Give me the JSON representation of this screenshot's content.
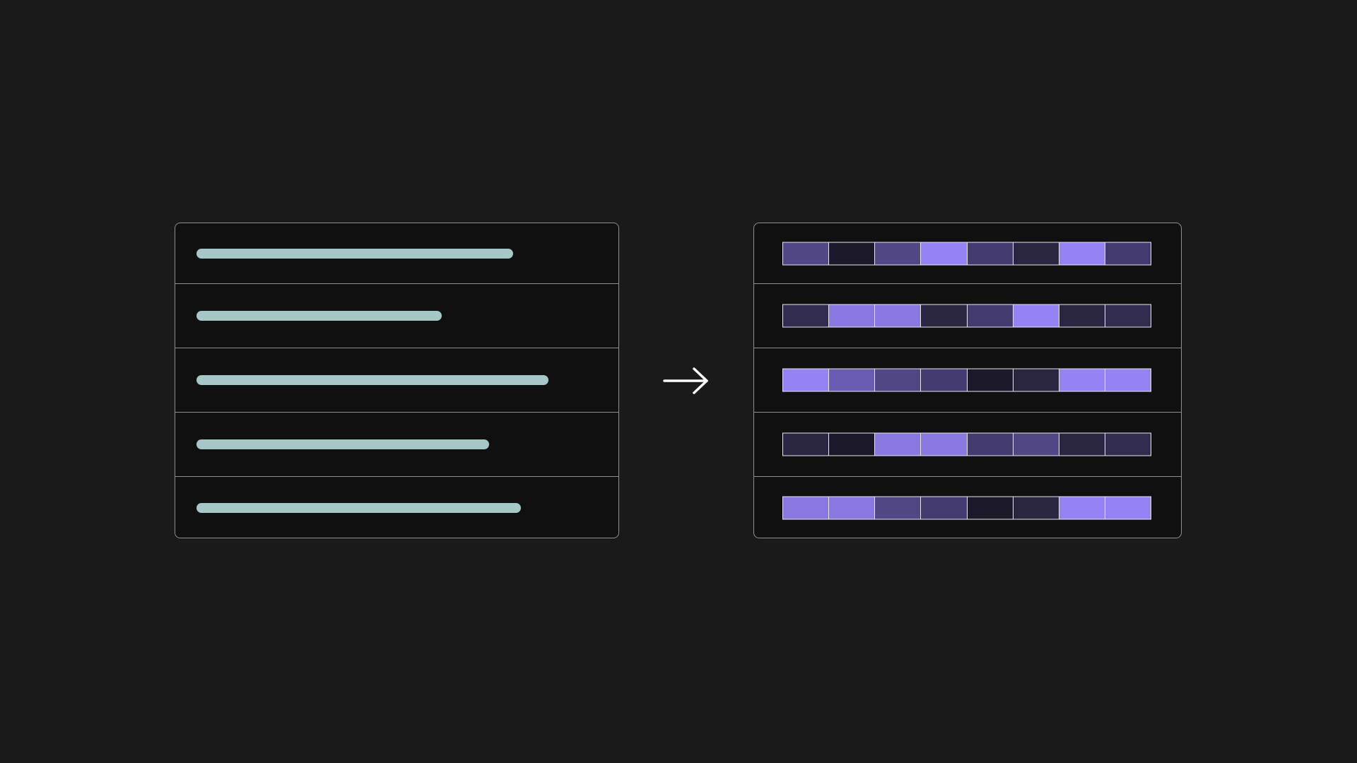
{
  "colors": {
    "background": "#1a1a1a",
    "panel": "#101010",
    "panel_border": "#8f8f8f",
    "text_bar": "#a6c7c7",
    "cell_border": "#e8e6f5",
    "arrow": "#ffffff"
  },
  "left_panel": {
    "rows": [
      {
        "fill_fraction": 0.8
      },
      {
        "fill_fraction": 0.62
      },
      {
        "fill_fraction": 0.89
      },
      {
        "fill_fraction": 0.74
      },
      {
        "fill_fraction": 0.82
      }
    ]
  },
  "arrow": {
    "icon": "arrow-right-icon"
  },
  "right_panel": {
    "rows": [
      {
        "cells": [
          "#514784",
          "#1b1829",
          "#514784",
          "#9583f4",
          "#433a6f",
          "#2a2540",
          "#9583f4",
          "#433a6f"
        ]
      },
      {
        "cells": [
          "#322c4e",
          "#8a78e0",
          "#8a78e0",
          "#2a2540",
          "#433a6f",
          "#9583f4",
          "#2a2540",
          "#322c4e"
        ]
      },
      {
        "cells": [
          "#9583f4",
          "#6b5cb3",
          "#514784",
          "#433a6f",
          "#1b1829",
          "#2a2540",
          "#9583f4",
          "#9583f4"
        ]
      },
      {
        "cells": [
          "#2a2540",
          "#1b1829",
          "#8a78e0",
          "#8a78e0",
          "#433a6f",
          "#514784",
          "#2a2540",
          "#322c4e"
        ]
      },
      {
        "cells": [
          "#8a78e0",
          "#8a78e0",
          "#514784",
          "#433a6f",
          "#1b1829",
          "#2a2540",
          "#9583f4",
          "#9583f4"
        ]
      }
    ]
  }
}
